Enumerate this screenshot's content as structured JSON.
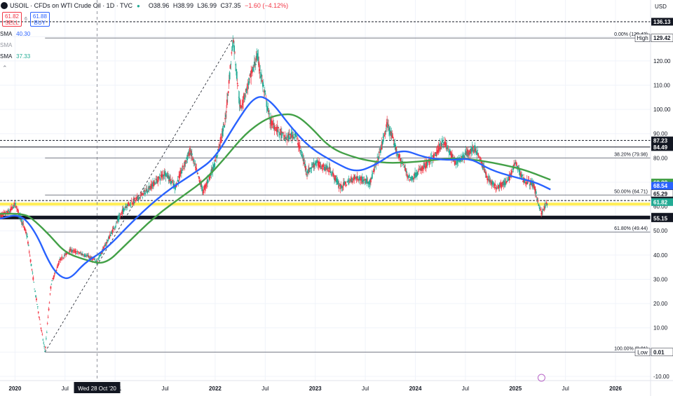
{
  "header": {
    "symbol": "USOIL · CFDs on WTI Crude Oil · 1D · TVC",
    "open": "O38.96",
    "high": "H38.99",
    "low": "L36.99",
    "close": "C37.35",
    "change": "−1.60 (−4.12%)"
  },
  "trade": {
    "sell_price": "61.82",
    "sell_label": "SELL",
    "spread": "6",
    "buy_price": "61.88",
    "buy_label": "BUY"
  },
  "indicators": [
    {
      "label": "SMA",
      "value": "40.30"
    },
    {
      "label": "SMA",
      "value": ""
    },
    {
      "label": "SMA",
      "value": "37.33"
    }
  ],
  "colors": {
    "up": "#22ab94",
    "down": "#f23645",
    "sma_fast": "#2962ff",
    "sma_slow": "#43a047",
    "zone": "#ffeb3b"
  },
  "chart_data": {
    "type": "candlestick",
    "currency": "USD",
    "ylim": [
      -10,
      138
    ],
    "y_ticks": [
      -10,
      0,
      10,
      20,
      30,
      40,
      50,
      60,
      70,
      80,
      90,
      100,
      110,
      120,
      130
    ],
    "x_ticks": [
      {
        "label": "2020",
        "date": 2020.0
      },
      {
        "label": "Jul",
        "date": 2020.5
      },
      {
        "label": "2021",
        "date": 2021.0
      },
      {
        "label": "Jul",
        "date": 2021.5
      },
      {
        "label": "2022",
        "date": 2022.0
      },
      {
        "label": "Jul",
        "date": 2022.5
      },
      {
        "label": "2023",
        "date": 2023.0
      },
      {
        "label": "Jul",
        "date": 2023.5
      },
      {
        "label": "2024",
        "date": 2024.0
      },
      {
        "label": "Jul",
        "date": 2024.5
      },
      {
        "label": "2025",
        "date": 2025.0
      },
      {
        "label": "Jul",
        "date": 2025.5
      },
      {
        "label": "2026",
        "date": 2026.0
      }
    ],
    "crosshair": {
      "date": 2020.82,
      "label": "Wed 28 Oct '20"
    },
    "price_path": [
      [
        2019.85,
        56
      ],
      [
        2019.95,
        58
      ],
      [
        2020.0,
        61
      ],
      [
        2020.05,
        56
      ],
      [
        2020.12,
        48
      ],
      [
        2020.2,
        25
      ],
      [
        2020.3,
        0.01
      ],
      [
        2020.36,
        28
      ],
      [
        2020.45,
        38
      ],
      [
        2020.55,
        42
      ],
      [
        2020.7,
        40
      ],
      [
        2020.82,
        37.35
      ],
      [
        2020.95,
        48
      ],
      [
        2021.1,
        60
      ],
      [
        2021.25,
        64
      ],
      [
        2021.4,
        70
      ],
      [
        2021.5,
        74
      ],
      [
        2021.6,
        68
      ],
      [
        2021.75,
        83
      ],
      [
        2021.88,
        66
      ],
      [
        2022.0,
        78
      ],
      [
        2022.1,
        95
      ],
      [
        2022.18,
        129.42
      ],
      [
        2022.25,
        100
      ],
      [
        2022.42,
        122
      ],
      [
        2022.55,
        95
      ],
      [
        2022.7,
        88
      ],
      [
        2022.8,
        90
      ],
      [
        2022.92,
        74
      ],
      [
        2023.0,
        78
      ],
      [
        2023.15,
        75
      ],
      [
        2023.25,
        68
      ],
      [
        2023.4,
        72
      ],
      [
        2023.55,
        70
      ],
      [
        2023.65,
        83
      ],
      [
        2023.72,
        94
      ],
      [
        2023.82,
        82
      ],
      [
        2023.95,
        71
      ],
      [
        2024.05,
        75
      ],
      [
        2024.18,
        80
      ],
      [
        2024.28,
        87
      ],
      [
        2024.4,
        78
      ],
      [
        2024.52,
        82
      ],
      [
        2024.6,
        84
      ],
      [
        2024.72,
        72
      ],
      [
        2024.8,
        68
      ],
      [
        2024.92,
        70
      ],
      [
        2025.0,
        78
      ],
      [
        2025.08,
        71
      ],
      [
        2025.18,
        69
      ],
      [
        2025.26,
        57
      ],
      [
        2025.32,
        61.82
      ]
    ],
    "sma_fast": [
      [
        2019.85,
        55
      ],
      [
        2020.05,
        57
      ],
      [
        2020.2,
        50
      ],
      [
        2020.35,
        36
      ],
      [
        2020.45,
        31
      ],
      [
        2020.55,
        30
      ],
      [
        2020.7,
        37
      ],
      [
        2020.9,
        42
      ],
      [
        2021.2,
        55
      ],
      [
        2021.5,
        66
      ],
      [
        2021.8,
        74
      ],
      [
        2022.0,
        80
      ],
      [
        2022.2,
        94
      ],
      [
        2022.4,
        106
      ],
      [
        2022.55,
        104
      ],
      [
        2022.75,
        93
      ],
      [
        2022.95,
        84
      ],
      [
        2023.2,
        78
      ],
      [
        2023.4,
        74
      ],
      [
        2023.6,
        77
      ],
      [
        2023.85,
        84
      ],
      [
        2024.1,
        80
      ],
      [
        2024.35,
        79
      ],
      [
        2024.55,
        80
      ],
      [
        2024.75,
        75
      ],
      [
        2025.0,
        72
      ],
      [
        2025.2,
        70
      ],
      [
        2025.35,
        67
      ]
    ],
    "sma_slow": [
      [
        2019.85,
        57
      ],
      [
        2020.1,
        57
      ],
      [
        2020.2,
        54
      ],
      [
        2020.35,
        48
      ],
      [
        2020.5,
        41
      ],
      [
        2020.7,
        38
      ],
      [
        2020.9,
        36
      ],
      [
        2021.1,
        44
      ],
      [
        2021.4,
        56
      ],
      [
        2021.7,
        65
      ],
      [
        2021.9,
        71
      ],
      [
        2022.1,
        80
      ],
      [
        2022.3,
        90
      ],
      [
        2022.5,
        96
      ],
      [
        2022.65,
        98
      ],
      [
        2022.8,
        98
      ],
      [
        2022.95,
        93
      ],
      [
        2023.15,
        84
      ],
      [
        2023.4,
        80
      ],
      [
        2023.65,
        78
      ],
      [
        2023.9,
        78
      ],
      [
        2024.15,
        79
      ],
      [
        2024.4,
        80
      ],
      [
        2024.65,
        79
      ],
      [
        2024.9,
        77
      ],
      [
        2025.1,
        75
      ],
      [
        2025.35,
        71
      ]
    ],
    "trendline": {
      "from": [
        2020.3,
        0.01
      ],
      "to": [
        2022.18,
        129.42
      ]
    },
    "fibonacci": [
      {
        "label": "0.00% (129.42)",
        "value": 129.42
      },
      {
        "label": "38.20% (79.98)",
        "value": 79.98
      },
      {
        "label": "50.00% (64.71)",
        "value": 64.71
      },
      {
        "label": "61.80% (49.44)",
        "value": 49.44
      },
      {
        "label": "100.00% (0.01)",
        "value": 0.01
      }
    ],
    "horizontal_levels": [
      {
        "value": 136.13,
        "style": "dashed"
      },
      {
        "value": 87.23,
        "style": "dashed"
      },
      {
        "value": 84.49,
        "style": "solid"
      },
      {
        "value": 55.77,
        "style": "thick"
      },
      {
        "value": 55.15,
        "style": "thick"
      }
    ],
    "zone": {
      "from": 61.82,
      "to": 62.46
    },
    "price_labels": [
      {
        "text": "136.13",
        "value": 136.13,
        "bg": "#131722",
        "fg": "#ffffff"
      },
      {
        "text": "129.42",
        "value": 129.42,
        "bg": "#ffffff",
        "fg": "#131722",
        "tag": "High"
      },
      {
        "text": "87.23",
        "value": 87.23,
        "bg": "#131722",
        "fg": "#ffffff"
      },
      {
        "text": "84.49",
        "value": 84.49,
        "bg": "#131722",
        "fg": "#ffffff"
      },
      {
        "text": "69.88",
        "value": 69.88,
        "bg": "#43a047",
        "fg": "#ffffff"
      },
      {
        "text": "68.54",
        "value": 68.54,
        "bg": "#2962ff",
        "fg": "#ffffff"
      },
      {
        "text": "65.29",
        "value": 65.29,
        "bg": "#ffffff",
        "fg": "#131722"
      },
      {
        "text": "62.46",
        "value": 62.46,
        "bg": "#131722",
        "fg": "#ffffff"
      },
      {
        "text": "61.82",
        "value": 61.82,
        "bg": "#22ab94",
        "fg": "#ffffff"
      },
      {
        "text": "55.77",
        "value": 55.77,
        "bg": "#131722",
        "fg": "#ffffff"
      },
      {
        "text": "55.15",
        "value": 55.15,
        "bg": "#131722",
        "fg": "#ffffff"
      },
      {
        "text": "0.01",
        "value": 0.01,
        "bg": "#ffffff",
        "fg": "#131722",
        "tag": "Low"
      }
    ]
  }
}
